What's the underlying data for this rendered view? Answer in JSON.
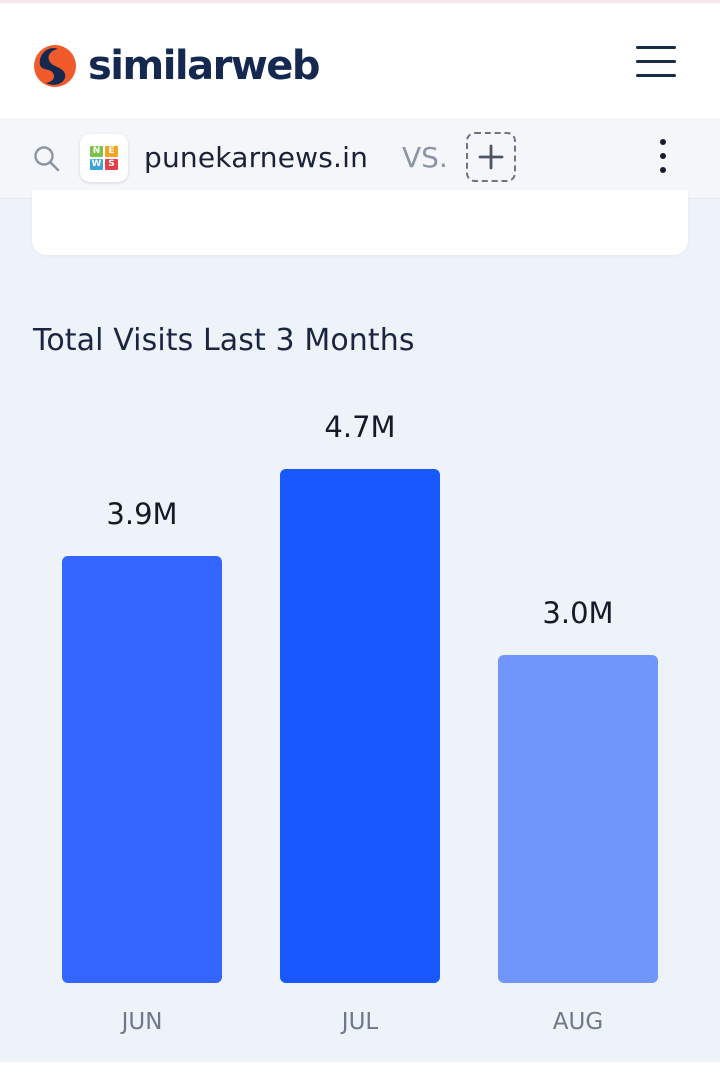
{
  "header": {
    "logo_text": "similarweb",
    "logo_icon": "similarweb-logo-icon",
    "menu_icon": "hamburger-menu-icon",
    "colors": {
      "logo_orange": "#f15a2b",
      "logo_navy": "#142850"
    }
  },
  "compare": {
    "search_icon": "search-icon",
    "site_favicon": {
      "letters": [
        "N",
        "E",
        "W",
        "S"
      ],
      "colors": [
        "#7cc24a",
        "#f3a521",
        "#3aa4d8",
        "#e2404b"
      ]
    },
    "site_name": "punekarnews.in",
    "vs_label": "VS.",
    "add_icon": "plus-icon",
    "more_icon": "more-vertical-icon"
  },
  "visits": {
    "title": "Total Visits Last 3 Months"
  },
  "chart_data": {
    "type": "bar",
    "title": "Total Visits Last 3 Months",
    "categories": [
      "JUN",
      "JUL",
      "AUG"
    ],
    "values": [
      3.9,
      4.7,
      3.0
    ],
    "value_labels": [
      "3.9M",
      "4.7M",
      "3.0M"
    ],
    "ylabel": "",
    "xlabel": "",
    "ylim": [
      0,
      4.7
    ],
    "grid": false,
    "legend": "none",
    "colors": [
      "#3366ff",
      "#1a58ff",
      "#7096fb"
    ]
  }
}
